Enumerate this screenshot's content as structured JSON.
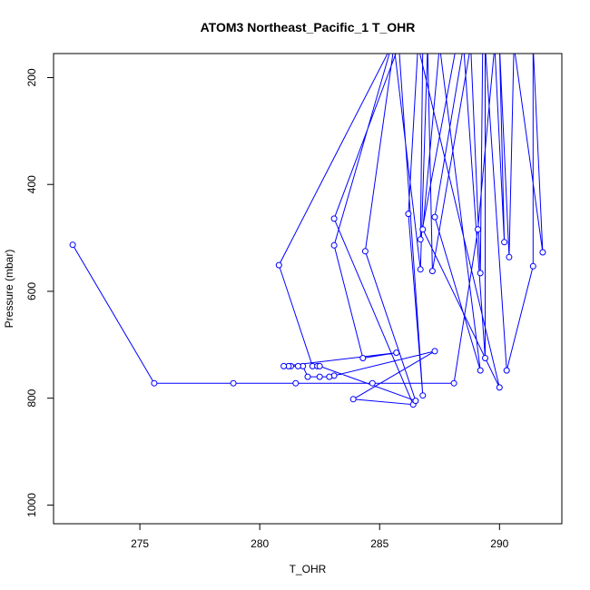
{
  "chart_data": {
    "type": "line",
    "title": "ATOM3 Northeast_Pacific_1 T_OHR",
    "xlabel": "T_OHR",
    "ylabel": "Pressure (mbar)",
    "xlim": [
      271.4,
      292.6
    ],
    "ylim": [
      1035,
      155
    ],
    "y_inverted": true,
    "x_ticks": [
      "275",
      "280",
      "285",
      "290"
    ],
    "y_ticks": [
      "200",
      "400",
      "600",
      "800",
      "1000"
    ],
    "grid": false,
    "color": "#0000ff",
    "series": [
      {
        "points": [
          [
            272.2,
            513
          ],
          [
            275.6,
            772
          ],
          [
            278.9,
            772
          ],
          [
            281.5,
            772
          ],
          [
            284.7,
            772
          ],
          [
            288.1,
            772
          ],
          [
            289.1,
            484
          ],
          [
            289.8,
            140
          ],
          [
            290.2,
            508
          ],
          [
            290.0,
            140
          ],
          [
            290.4,
            536
          ],
          [
            290.6,
            140
          ],
          [
            291.8,
            527
          ],
          [
            291.4,
            140
          ],
          [
            291.4,
            553
          ],
          [
            290.3,
            748
          ],
          [
            289.4,
            140
          ],
          [
            289.4,
            725
          ],
          [
            288.5,
            140
          ],
          [
            287.3,
            461
          ],
          [
            289.2,
            748
          ],
          [
            287.5,
            140
          ],
          [
            286.8,
            484
          ],
          [
            290.0,
            780
          ],
          [
            286.6,
            140
          ],
          [
            286.2,
            455
          ],
          [
            286.8,
            795
          ],
          [
            285.8,
            140
          ],
          [
            283.1,
            464
          ],
          [
            286.4,
            812
          ],
          [
            283.9,
            802
          ],
          [
            287.3,
            712
          ],
          [
            283.1,
            758
          ],
          [
            282.9,
            760
          ],
          [
            282.5,
            760
          ],
          [
            282.0,
            760
          ],
          [
            281.8,
            740
          ],
          [
            281.6,
            740
          ],
          [
            281.3,
            740
          ],
          [
            281.2,
            740
          ],
          [
            281.0,
            740
          ],
          [
            285.7,
            715
          ],
          [
            284.3,
            725
          ],
          [
            283.1,
            514
          ],
          [
            285.5,
            140
          ],
          [
            280.8,
            551
          ],
          [
            282.2,
            740
          ],
          [
            282.4,
            740
          ],
          [
            282.5,
            740
          ],
          [
            286.5,
            805
          ],
          [
            284.4,
            525
          ],
          [
            285.6,
            140
          ],
          [
            286.7,
            559
          ],
          [
            287.0,
            140
          ],
          [
            287.2,
            562
          ],
          [
            288.8,
            140
          ],
          [
            289.2,
            566
          ],
          [
            289.3,
            140
          ],
          [
            288.9,
            140
          ],
          [
            288.6,
            140
          ],
          [
            288.2,
            140
          ],
          [
            286.7,
            503
          ],
          [
            286.8,
            140
          ],
          [
            286.7,
            140
          ],
          [
            286.6,
            140
          ],
          [
            286.5,
            140
          ],
          [
            286.4,
            140
          ]
        ]
      }
    ]
  }
}
